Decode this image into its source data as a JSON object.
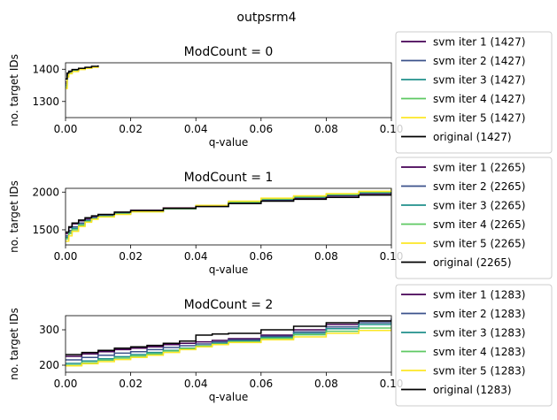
{
  "figure": {
    "suptitle": "outpsrm4"
  },
  "chart_data": [
    {
      "type": "line",
      "title": "ModCount = 0",
      "xlabel": "q-value",
      "ylabel": "no. target IDs",
      "xlim": [
        0,
        0.1
      ],
      "ylim": [
        1250,
        1420
      ],
      "xticks": [
        "0.00",
        "0.02",
        "0.04",
        "0.06",
        "0.08",
        "0.10"
      ],
      "xtick_values": [
        0,
        0.02,
        0.04,
        0.06,
        0.08,
        0.1
      ],
      "yticks": [
        "1300",
        "1400"
      ],
      "ytick_values": [
        1300,
        1400
      ],
      "legend_position": "right",
      "series": [
        {
          "name": "svm iter 1 (1427)",
          "color": "#440154",
          "x": [
            0,
            0.0005,
            0.001,
            0.002,
            0.004,
            0.006,
            0.008,
            0.01
          ],
          "y": [
            1360,
            1385,
            1392,
            1398,
            1402,
            1405,
            1408,
            1411
          ]
        },
        {
          "name": "svm iter 2 (1427)",
          "color": "#3b528b",
          "x": [
            0,
            0.0005,
            0.001,
            0.002,
            0.004,
            0.006,
            0.008,
            0.01
          ],
          "y": [
            1355,
            1382,
            1390,
            1396,
            1401,
            1404,
            1407,
            1410
          ]
        },
        {
          "name": "svm iter 3 (1427)",
          "color": "#21918c",
          "x": [
            0,
            0.0005,
            0.001,
            0.002,
            0.004,
            0.006,
            0.008,
            0.01
          ],
          "y": [
            1350,
            1380,
            1388,
            1395,
            1400,
            1404,
            1407,
            1410
          ]
        },
        {
          "name": "svm iter 4 (1427)",
          "color": "#5ec962",
          "x": [
            0,
            0.0005,
            0.001,
            0.002,
            0.004,
            0.006,
            0.008,
            0.01
          ],
          "y": [
            1345,
            1378,
            1387,
            1394,
            1400,
            1403,
            1407,
            1410
          ]
        },
        {
          "name": "svm iter 5 (1427)",
          "color": "#fde725",
          "x": [
            0,
            0.0005,
            0.001,
            0.002,
            0.004,
            0.006,
            0.008,
            0.01
          ],
          "y": [
            1340,
            1376,
            1386,
            1393,
            1399,
            1403,
            1406,
            1410
          ]
        },
        {
          "name": "original (1427)",
          "color": "#000000",
          "x": [
            0,
            0.0005,
            0.001,
            0.002,
            0.004,
            0.006,
            0.008,
            0.01
          ],
          "y": [
            1370,
            1388,
            1394,
            1399,
            1403,
            1406,
            1409,
            1412
          ]
        }
      ]
    },
    {
      "type": "line",
      "title": "ModCount = 1",
      "xlabel": "q-value",
      "ylabel": "no. target IDs",
      "xlim": [
        0,
        0.1
      ],
      "ylim": [
        1300,
        2050
      ],
      "xticks": [
        "0.00",
        "0.02",
        "0.04",
        "0.06",
        "0.08",
        "0.10"
      ],
      "xtick_values": [
        0,
        0.02,
        0.04,
        0.06,
        0.08,
        0.1
      ],
      "yticks": [
        "1500",
        "2000"
      ],
      "ytick_values": [
        1500,
        2000
      ],
      "legend_position": "right",
      "series": [
        {
          "name": "svm iter 1 (2265)",
          "color": "#440154",
          "x": [
            0,
            0.001,
            0.002,
            0.004,
            0.006,
            0.008,
            0.01,
            0.015,
            0.02,
            0.03,
            0.04,
            0.05,
            0.06,
            0.07,
            0.08,
            0.09,
            0.1
          ],
          "y": [
            1450,
            1530,
            1580,
            1620,
            1650,
            1680,
            1700,
            1730,
            1760,
            1790,
            1810,
            1850,
            1890,
            1920,
            1950,
            1980,
            2020
          ]
        },
        {
          "name": "svm iter 2 (2265)",
          "color": "#3b528b",
          "x": [
            0,
            0.001,
            0.002,
            0.004,
            0.006,
            0.008,
            0.01,
            0.015,
            0.02,
            0.03,
            0.04,
            0.05,
            0.06,
            0.07,
            0.08,
            0.09,
            0.1
          ],
          "y": [
            1420,
            1490,
            1540,
            1590,
            1630,
            1660,
            1690,
            1720,
            1750,
            1780,
            1810,
            1860,
            1900,
            1930,
            1960,
            1990,
            2030
          ]
        },
        {
          "name": "svm iter 3 (2265)",
          "color": "#21918c",
          "x": [
            0,
            0.001,
            0.002,
            0.004,
            0.006,
            0.008,
            0.01,
            0.015,
            0.02,
            0.03,
            0.04,
            0.05,
            0.06,
            0.07,
            0.08,
            0.09,
            0.1
          ],
          "y": [
            1400,
            1470,
            1520,
            1570,
            1620,
            1650,
            1680,
            1715,
            1745,
            1780,
            1815,
            1865,
            1905,
            1935,
            1965,
            1995,
            2035
          ]
        },
        {
          "name": "svm iter 4 (2265)",
          "color": "#5ec962",
          "x": [
            0,
            0.001,
            0.002,
            0.004,
            0.006,
            0.008,
            0.01,
            0.015,
            0.02,
            0.03,
            0.04,
            0.05,
            0.06,
            0.07,
            0.08,
            0.09,
            0.1
          ],
          "y": [
            1380,
            1450,
            1500,
            1560,
            1610,
            1645,
            1675,
            1710,
            1740,
            1780,
            1820,
            1870,
            1910,
            1940,
            1970,
            2000,
            2040
          ]
        },
        {
          "name": "svm iter 5 (2265)",
          "color": "#fde725",
          "x": [
            0,
            0.001,
            0.002,
            0.004,
            0.006,
            0.008,
            0.01,
            0.015,
            0.02,
            0.03,
            0.04,
            0.05,
            0.06,
            0.07,
            0.08,
            0.09,
            0.1
          ],
          "y": [
            1350,
            1420,
            1480,
            1545,
            1600,
            1640,
            1670,
            1705,
            1740,
            1785,
            1825,
            1880,
            1920,
            1950,
            1980,
            2010,
            2045
          ]
        },
        {
          "name": "original (2265)",
          "color": "#000000",
          "x": [
            0,
            0.001,
            0.002,
            0.004,
            0.006,
            0.008,
            0.01,
            0.015,
            0.02,
            0.03,
            0.04,
            0.05,
            0.06,
            0.07,
            0.08,
            0.09,
            0.1
          ],
          "y": [
            1470,
            1540,
            1590,
            1630,
            1660,
            1685,
            1705,
            1735,
            1755,
            1785,
            1810,
            1850,
            1880,
            1905,
            1930,
            1960,
            2000
          ]
        }
      ]
    },
    {
      "type": "line",
      "title": "ModCount = 2",
      "xlabel": "q-value",
      "ylabel": "no. target IDs",
      "xlim": [
        0,
        0.1
      ],
      "ylim": [
        180,
        340
      ],
      "xticks": [
        "0.00",
        "0.02",
        "0.04",
        "0.06",
        "0.08",
        "0.10"
      ],
      "xtick_values": [
        0,
        0.02,
        0.04,
        0.06,
        0.08,
        0.1
      ],
      "yticks": [
        "200",
        "300"
      ],
      "ytick_values": [
        200,
        300
      ],
      "legend_position": "right",
      "series": [
        {
          "name": "svm iter 1 (1283)",
          "color": "#440154",
          "x": [
            0,
            0.005,
            0.01,
            0.015,
            0.02,
            0.025,
            0.03,
            0.035,
            0.04,
            0.045,
            0.05,
            0.06,
            0.07,
            0.08,
            0.09,
            0.1
          ],
          "y": [
            225,
            232,
            238,
            244,
            248,
            252,
            258,
            262,
            266,
            270,
            275,
            285,
            300,
            315,
            325,
            330
          ]
        },
        {
          "name": "svm iter 2 (1283)",
          "color": "#3b528b",
          "x": [
            0,
            0.005,
            0.01,
            0.015,
            0.02,
            0.025,
            0.03,
            0.035,
            0.04,
            0.045,
            0.05,
            0.06,
            0.07,
            0.08,
            0.09,
            0.1
          ],
          "y": [
            215,
            222,
            228,
            234,
            238,
            244,
            250,
            255,
            260,
            266,
            272,
            282,
            294,
            308,
            320,
            334
          ]
        },
        {
          "name": "svm iter 3 (1283)",
          "color": "#21918c",
          "x": [
            0,
            0.005,
            0.01,
            0.015,
            0.02,
            0.025,
            0.03,
            0.035,
            0.04,
            0.045,
            0.05,
            0.06,
            0.07,
            0.08,
            0.09,
            0.1
          ],
          "y": [
            205,
            212,
            218,
            224,
            230,
            236,
            242,
            248,
            255,
            262,
            268,
            278,
            290,
            303,
            315,
            326
          ]
        },
        {
          "name": "svm iter 4 (1283)",
          "color": "#5ec962",
          "x": [
            0,
            0.005,
            0.01,
            0.015,
            0.02,
            0.025,
            0.03,
            0.035,
            0.04,
            0.045,
            0.05,
            0.06,
            0.07,
            0.08,
            0.09,
            0.1
          ],
          "y": [
            200,
            207,
            214,
            220,
            226,
            232,
            240,
            247,
            254,
            260,
            266,
            276,
            286,
            296,
            305,
            312
          ]
        },
        {
          "name": "svm iter 5 (1283)",
          "color": "#fde725",
          "x": [
            0,
            0.005,
            0.01,
            0.015,
            0.02,
            0.025,
            0.03,
            0.035,
            0.04,
            0.045,
            0.05,
            0.06,
            0.07,
            0.08,
            0.09,
            0.1
          ],
          "y": [
            198,
            204,
            210,
            216,
            222,
            228,
            236,
            244,
            252,
            258,
            264,
            272,
            280,
            290,
            298,
            303
          ]
        },
        {
          "name": "original (1283)",
          "color": "#000000",
          "x": [
            0,
            0.005,
            0.01,
            0.015,
            0.02,
            0.025,
            0.03,
            0.035,
            0.04,
            0.045,
            0.05,
            0.06,
            0.07,
            0.08,
            0.09,
            0.1
          ],
          "y": [
            230,
            236,
            242,
            248,
            252,
            256,
            262,
            268,
            285,
            288,
            290,
            300,
            310,
            320,
            325,
            328
          ]
        }
      ]
    }
  ]
}
